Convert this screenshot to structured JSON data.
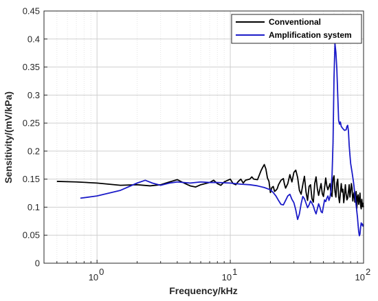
{
  "chart_data": {
    "type": "line",
    "xlabel": "Frequency/kHz",
    "ylabel": "Sensitivity/(mV/kPa)",
    "x_scale": "log",
    "xlim": [
      0.4,
      100
    ],
    "ylim": [
      0,
      0.45
    ],
    "x_ticks": [
      1,
      10,
      100
    ],
    "x_tick_labels": [
      {
        "base": "10",
        "exp": "0"
      },
      {
        "base": "10",
        "exp": "1"
      },
      {
        "base": "10",
        "exp": "2"
      }
    ],
    "y_ticks": [
      0,
      0.05,
      0.1,
      0.15,
      0.2,
      0.25,
      0.3,
      0.35,
      0.4,
      0.45
    ],
    "y_tick_labels": [
      "0",
      "0.05",
      "0.1",
      "0.15",
      "0.2",
      "0.25",
      "0.3",
      "0.35",
      "0.4",
      "0.45"
    ],
    "grid": true,
    "legend_position": "top-right",
    "series": [
      {
        "name": "Conventional",
        "color": "#000000",
        "points": [
          [
            0.5,
            0.146
          ],
          [
            0.7,
            0.145
          ],
          [
            1.0,
            0.143
          ],
          [
            1.5,
            0.139
          ],
          [
            2.0,
            0.14
          ],
          [
            2.5,
            0.138
          ],
          [
            3.0,
            0.14
          ],
          [
            3.5,
            0.145
          ],
          [
            4.0,
            0.149
          ],
          [
            4.5,
            0.143
          ],
          [
            5.0,
            0.138
          ],
          [
            5.5,
            0.136
          ],
          [
            6.0,
            0.14
          ],
          [
            7.0,
            0.144
          ],
          [
            7.5,
            0.148
          ],
          [
            8.0,
            0.142
          ],
          [
            8.5,
            0.139
          ],
          [
            9.0,
            0.145
          ],
          [
            10.0,
            0.15
          ],
          [
            10.5,
            0.142
          ],
          [
            11.0,
            0.14
          ],
          [
            11.5,
            0.146
          ],
          [
            12.0,
            0.15
          ],
          [
            12.5,
            0.143
          ],
          [
            13.0,
            0.148
          ],
          [
            14.0,
            0.15
          ],
          [
            14.5,
            0.154
          ],
          [
            15.0,
            0.15
          ],
          [
            16.0,
            0.149
          ],
          [
            17.0,
            0.165
          ],
          [
            17.5,
            0.171
          ],
          [
            18.0,
            0.176
          ],
          [
            18.5,
            0.168
          ],
          [
            19.0,
            0.152
          ],
          [
            19.5,
            0.146
          ],
          [
            20.0,
            0.126
          ],
          [
            20.5,
            0.135
          ],
          [
            21.0,
            0.137
          ],
          [
            21.5,
            0.128
          ],
          [
            22.0,
            0.13
          ],
          [
            22.5,
            0.133
          ],
          [
            23.0,
            0.14
          ],
          [
            24.0,
            0.148
          ],
          [
            25.0,
            0.151
          ],
          [
            25.5,
            0.141
          ],
          [
            26.0,
            0.134
          ],
          [
            27.0,
            0.142
          ],
          [
            28.0,
            0.158
          ],
          [
            29.0,
            0.145
          ],
          [
            30.0,
            0.162
          ],
          [
            31.0,
            0.166
          ],
          [
            32.0,
            0.153
          ],
          [
            33.0,
            0.13
          ],
          [
            34.0,
            0.123
          ],
          [
            35.0,
            0.14
          ],
          [
            36.0,
            0.155
          ],
          [
            37.0,
            0.127
          ],
          [
            38.0,
            0.112
          ],
          [
            39.0,
            0.137
          ],
          [
            40.0,
            0.14
          ],
          [
            41.0,
            0.115
          ],
          [
            42.0,
            0.109
          ],
          [
            43.0,
            0.142
          ],
          [
            44.0,
            0.154
          ],
          [
            45.0,
            0.133
          ],
          [
            46.0,
            0.121
          ],
          [
            47.0,
            0.132
          ],
          [
            48.0,
            0.142
          ],
          [
            49.0,
            0.124
          ],
          [
            50.0,
            0.119
          ],
          [
            51.0,
            0.135
          ],
          [
            52.0,
            0.152
          ],
          [
            53.0,
            0.138
          ],
          [
            54.0,
            0.131
          ],
          [
            55.0,
            0.137
          ],
          [
            56.0,
            0.142
          ],
          [
            57.0,
            0.123
          ],
          [
            58.0,
            0.119
          ],
          [
            59.0,
            0.15
          ],
          [
            60.0,
            0.156
          ],
          [
            61.0,
            0.128
          ],
          [
            62.0,
            0.118
          ],
          [
            63.0,
            0.143
          ],
          [
            64.0,
            0.15
          ],
          [
            65.0,
            0.119
          ],
          [
            66.0,
            0.108
          ],
          [
            67.0,
            0.125
          ],
          [
            68.0,
            0.142
          ],
          [
            69.0,
            0.127
          ],
          [
            70.0,
            0.132
          ],
          [
            71.0,
            0.108
          ],
          [
            72.0,
            0.122
          ],
          [
            73.0,
            0.14
          ],
          [
            74.0,
            0.124
          ],
          [
            75.0,
            0.113
          ],
          [
            76.0,
            0.116
          ],
          [
            77.0,
            0.128
          ],
          [
            78.0,
            0.14
          ],
          [
            79.0,
            0.118
          ],
          [
            80.0,
            0.128
          ],
          [
            81.0,
            0.142
          ],
          [
            82.0,
            0.134
          ],
          [
            83.0,
            0.111
          ],
          [
            84.0,
            0.121
          ],
          [
            85.0,
            0.126
          ],
          [
            86.0,
            0.109
          ],
          [
            87.0,
            0.115
          ],
          [
            88.0,
            0.128
          ],
          [
            89.0,
            0.098
          ],
          [
            90.0,
            0.118
          ],
          [
            91.0,
            0.122
          ],
          [
            92.0,
            0.105
          ],
          [
            93.0,
            0.112
          ],
          [
            94.0,
            0.125
          ],
          [
            95.0,
            0.103
          ],
          [
            96.0,
            0.097
          ],
          [
            97.0,
            0.114
          ],
          [
            98.0,
            0.101
          ],
          [
            99.0,
            0.107
          ],
          [
            100.0,
            0.1
          ]
        ]
      },
      {
        "name": "Amplification system",
        "color": "#1a1ac8",
        "points": [
          [
            0.75,
            0.116
          ],
          [
            1.0,
            0.12
          ],
          [
            1.5,
            0.13
          ],
          [
            2.0,
            0.143
          ],
          [
            2.3,
            0.148
          ],
          [
            2.6,
            0.143
          ],
          [
            3.0,
            0.139
          ],
          [
            3.5,
            0.143
          ],
          [
            4.0,
            0.145
          ],
          [
            5.0,
            0.143
          ],
          [
            6.0,
            0.145
          ],
          [
            7.0,
            0.144
          ],
          [
            8.0,
            0.144
          ],
          [
            10.0,
            0.143
          ],
          [
            12.0,
            0.141
          ],
          [
            14.0,
            0.14
          ],
          [
            16.0,
            0.138
          ],
          [
            18.0,
            0.135
          ],
          [
            20.0,
            0.131
          ],
          [
            21.0,
            0.126
          ],
          [
            22.0,
            0.12
          ],
          [
            23.0,
            0.112
          ],
          [
            24.0,
            0.105
          ],
          [
            25.0,
            0.104
          ],
          [
            26.0,
            0.112
          ],
          [
            27.0,
            0.12
          ],
          [
            28.0,
            0.123
          ],
          [
            29.0,
            0.114
          ],
          [
            30.0,
            0.108
          ],
          [
            31.0,
            0.095
          ],
          [
            32.0,
            0.078
          ],
          [
            33.0,
            0.088
          ],
          [
            34.0,
            0.106
          ],
          [
            35.0,
            0.119
          ],
          [
            36.0,
            0.115
          ],
          [
            37.0,
            0.107
          ],
          [
            38.0,
            0.099
          ],
          [
            39.0,
            0.104
          ],
          [
            40.0,
            0.111
          ],
          [
            41.0,
            0.107
          ],
          [
            42.0,
            0.102
          ],
          [
            43.0,
            0.094
          ],
          [
            44.0,
            0.088
          ],
          [
            45.0,
            0.097
          ],
          [
            46.0,
            0.106
          ],
          [
            47.0,
            0.1
          ],
          [
            48.0,
            0.092
          ],
          [
            49.0,
            0.09
          ],
          [
            50.0,
            0.102
          ],
          [
            51.0,
            0.113
          ],
          [
            52.0,
            0.11
          ],
          [
            53.0,
            0.116
          ],
          [
            54.0,
            0.12
          ],
          [
            55.0,
            0.112
          ],
          [
            56.0,
            0.118
          ],
          [
            57.0,
            0.13
          ],
          [
            58.0,
            0.156
          ],
          [
            59.0,
            0.215
          ],
          [
            60.0,
            0.33
          ],
          [
            61.0,
            0.392
          ],
          [
            62.0,
            0.376
          ],
          [
            63.0,
            0.347
          ],
          [
            64.0,
            0.3
          ],
          [
            65.0,
            0.255
          ],
          [
            66.0,
            0.248
          ],
          [
            67.0,
            0.252
          ],
          [
            68.0,
            0.244
          ],
          [
            70.0,
            0.24
          ],
          [
            72.0,
            0.237
          ],
          [
            74.0,
            0.238
          ],
          [
            75.0,
            0.244
          ],
          [
            76.0,
            0.246
          ],
          [
            77.0,
            0.236
          ],
          [
            78.0,
            0.21
          ],
          [
            79.0,
            0.193
          ],
          [
            80.0,
            0.178
          ],
          [
            82.0,
            0.162
          ],
          [
            84.0,
            0.145
          ],
          [
            86.0,
            0.124
          ],
          [
            88.0,
            0.103
          ],
          [
            90.0,
            0.082
          ],
          [
            91.0,
            0.068
          ],
          [
            92.0,
            0.056
          ],
          [
            93.0,
            0.049
          ],
          [
            94.0,
            0.052
          ],
          [
            95.0,
            0.064
          ],
          [
            96.0,
            0.072
          ],
          [
            97.0,
            0.068
          ],
          [
            98.0,
            0.07
          ],
          [
            99.0,
            0.066
          ],
          [
            100.0,
            0.069
          ]
        ]
      }
    ]
  }
}
